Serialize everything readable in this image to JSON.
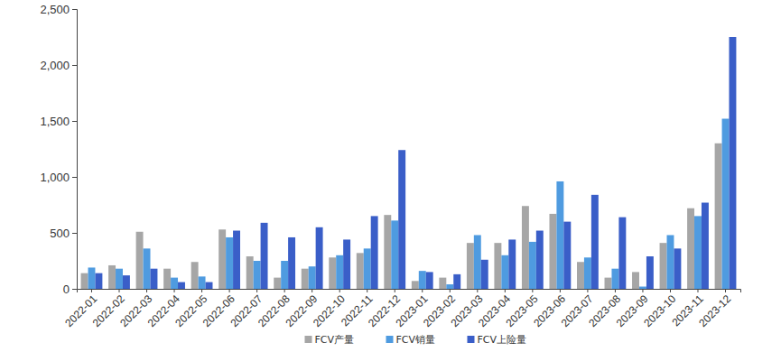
{
  "chart_data": {
    "type": "bar",
    "categories": [
      "2022-01",
      "2022-02",
      "2022-03",
      "2022-04",
      "2022-05",
      "2022-06",
      "2022-07",
      "2022-08",
      "2022-09",
      "2022-10",
      "2022-11",
      "2022-12",
      "2023-01",
      "2023-02",
      "2023-03",
      "2023-04",
      "2023-05",
      "2023-06",
      "2023-07",
      "2023-08",
      "2023-09",
      "2023-10",
      "2023-11",
      "2023-12"
    ],
    "series": [
      {
        "name": "FCV产量",
        "color": "#a6a6a6",
        "values": [
          140,
          210,
          510,
          180,
          240,
          530,
          290,
          100,
          180,
          280,
          320,
          660,
          70,
          100,
          410,
          410,
          740,
          670,
          240,
          100,
          150,
          410,
          720,
          1300
        ]
      },
      {
        "name": "FCV销量",
        "color": "#4f9be0",
        "values": [
          190,
          180,
          360,
          100,
          110,
          460,
          250,
          250,
          200,
          300,
          360,
          610,
          160,
          40,
          480,
          300,
          420,
          960,
          280,
          180,
          20,
          480,
          650,
          1520
        ]
      },
      {
        "name": "FCV上险量",
        "color": "#3a5ec8",
        "values": [
          140,
          120,
          180,
          60,
          60,
          520,
          590,
          460,
          550,
          440,
          650,
          1240,
          150,
          130,
          260,
          440,
          520,
          600,
          840,
          640,
          290,
          360,
          770,
          2250
        ]
      }
    ],
    "ylim": [
      0,
      2500
    ],
    "yticks": [
      0,
      500,
      {
        "value": 1000,
        "label": "1,000"
      },
      {
        "value": 1500,
        "label": "1,500"
      },
      {
        "value": 2000,
        "label": "2,000"
      },
      {
        "value": 2500,
        "label": "2,500"
      }
    ],
    "grid": false,
    "legend": "bottom"
  }
}
